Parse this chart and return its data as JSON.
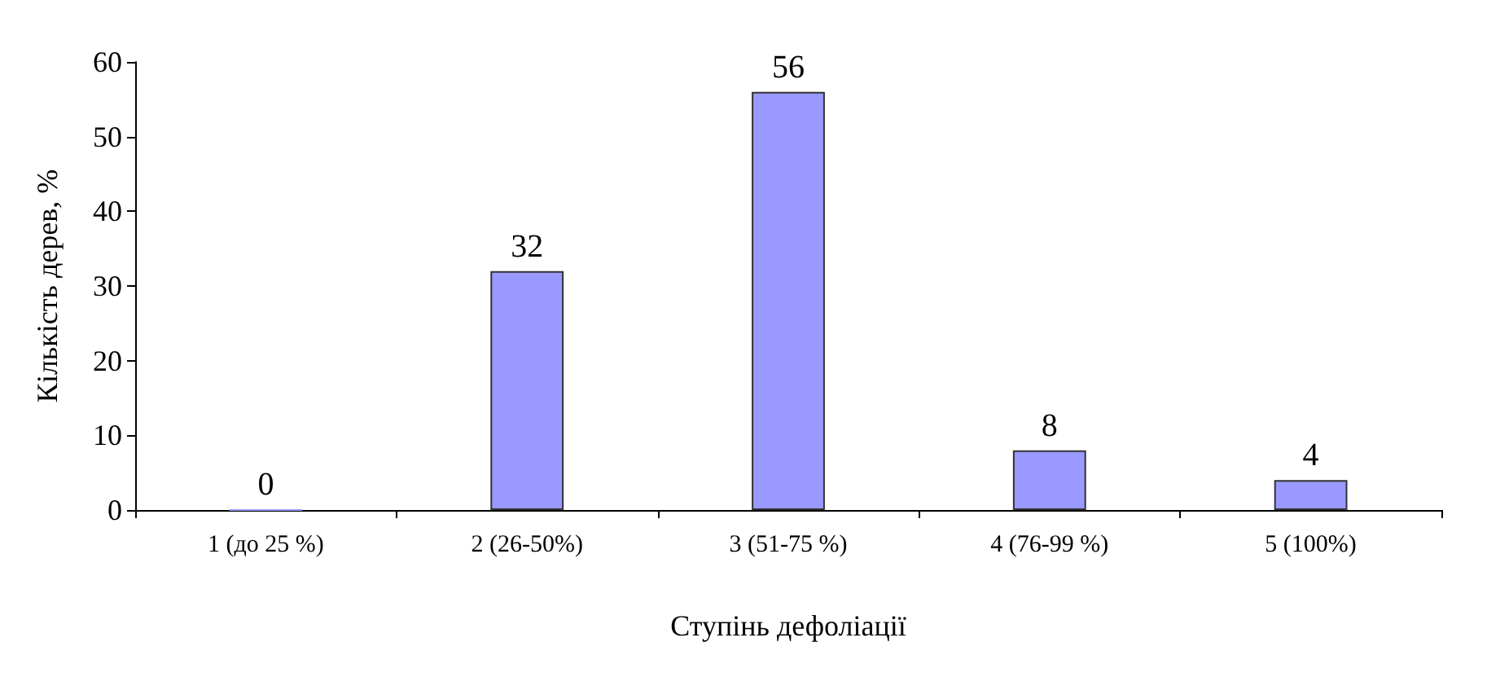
{
  "chart_data": {
    "type": "bar",
    "xlabel": "Ступінь дефоліації",
    "ylabel": "Кількість дерев, %",
    "categories": [
      "1 (до 25 %)",
      "2 (26-50%)",
      "3 (51-75 %)",
      "4 (76-99 %)",
      "5 (100%)"
    ],
    "values": [
      0,
      32,
      56,
      8,
      4
    ],
    "color": "#9999ff",
    "data_labels": true,
    "ylim": [
      0,
      60
    ],
    "yticks": [
      0,
      10,
      20,
      30,
      40,
      50,
      60
    ],
    "grid": false
  }
}
